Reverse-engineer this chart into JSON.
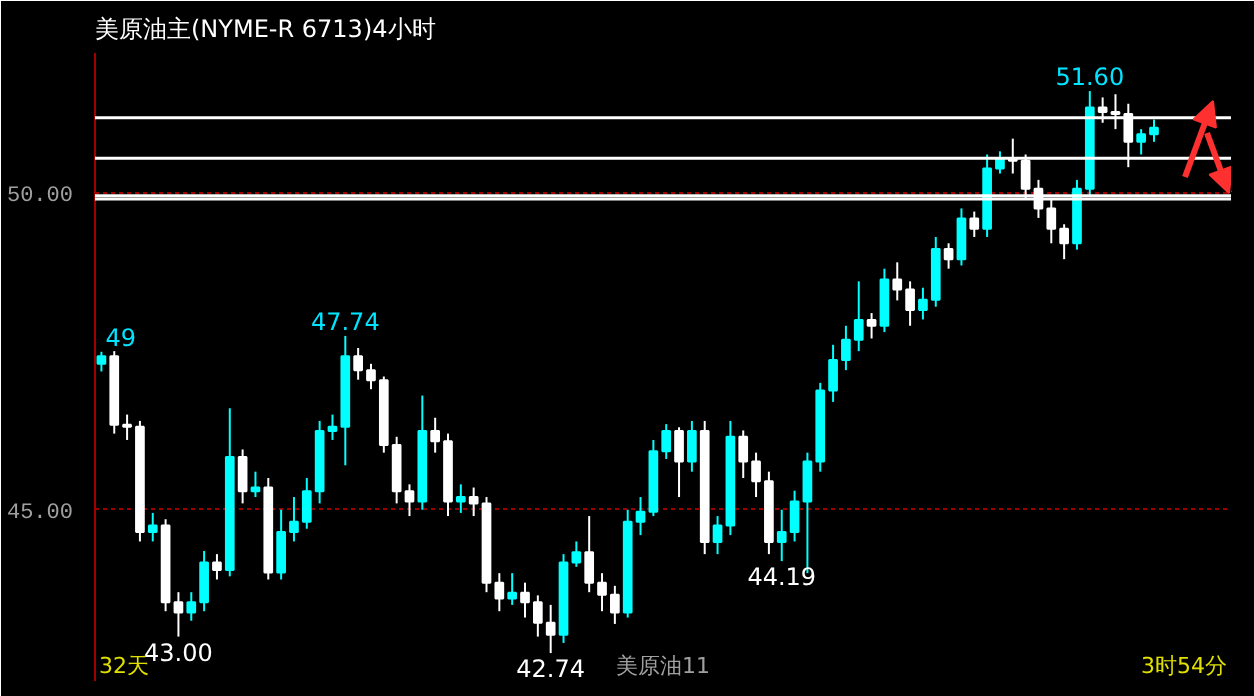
{
  "chart_data": {
    "type": "candlestick",
    "title": "美原油主(NYME-R 6713)4小时",
    "categories": [
      null,
      null,
      null,
      null,
      null,
      null,
      null,
      null,
      null,
      null,
      null,
      null,
      null,
      null,
      null,
      null,
      null,
      null,
      null,
      null,
      null,
      null,
      null,
      null,
      null,
      null,
      null,
      null,
      null,
      null,
      null,
      null,
      null,
      null,
      null,
      null,
      null,
      null,
      null,
      null,
      null,
      null,
      null,
      null,
      null,
      null,
      null,
      null,
      null,
      null,
      null,
      null,
      null,
      null,
      null,
      null,
      null,
      null,
      null,
      null,
      null,
      null,
      null,
      null,
      null,
      null,
      null,
      null,
      null,
      null,
      null,
      null,
      null,
      null,
      null,
      null,
      null,
      null,
      null,
      null,
      null,
      null,
      null
    ],
    "ohlc": [
      [
        47.3,
        47.49,
        47.18,
        47.42
      ],
      [
        47.42,
        47.5,
        46.2,
        46.34
      ],
      [
        46.34,
        46.5,
        46.1,
        46.31
      ],
      [
        46.31,
        46.4,
        44.5,
        44.65
      ],
      [
        44.65,
        44.95,
        44.5,
        44.75
      ],
      [
        44.75,
        44.85,
        43.4,
        43.54
      ],
      [
        43.54,
        43.7,
        43.0,
        43.38
      ],
      [
        43.38,
        43.7,
        43.25,
        43.54
      ],
      [
        43.54,
        44.35,
        43.4,
        44.17
      ],
      [
        44.17,
        44.3,
        43.9,
        44.05
      ],
      [
        44.05,
        46.6,
        43.95,
        45.83
      ],
      [
        45.83,
        45.95,
        45.1,
        45.29
      ],
      [
        45.29,
        45.6,
        45.2,
        45.35
      ],
      [
        45.35,
        45.5,
        43.9,
        44.01
      ],
      [
        44.01,
        45.0,
        43.9,
        44.65
      ],
      [
        44.65,
        45.2,
        44.5,
        44.81
      ],
      [
        44.81,
        45.5,
        44.7,
        45.29
      ],
      [
        45.29,
        46.4,
        45.1,
        46.24
      ],
      [
        46.24,
        46.5,
        46.1,
        46.31
      ],
      [
        46.31,
        47.74,
        45.7,
        47.42
      ],
      [
        47.42,
        47.55,
        47.05,
        47.2
      ],
      [
        47.2,
        47.3,
        46.9,
        47.04
      ],
      [
        47.04,
        47.1,
        45.9,
        46.02
      ],
      [
        46.02,
        46.15,
        45.1,
        45.29
      ],
      [
        45.29,
        45.4,
        44.9,
        45.13
      ],
      [
        45.13,
        46.8,
        45.0,
        46.24
      ],
      [
        46.24,
        46.45,
        45.9,
        46.08
      ],
      [
        46.08,
        46.2,
        44.9,
        45.13
      ],
      [
        45.13,
        45.4,
        44.95,
        45.2
      ],
      [
        45.2,
        45.35,
        44.9,
        45.1
      ],
      [
        45.1,
        45.2,
        43.7,
        43.85
      ],
      [
        43.85,
        44.0,
        43.4,
        43.6
      ],
      [
        43.6,
        44.0,
        43.5,
        43.69
      ],
      [
        43.69,
        43.85,
        43.3,
        43.54
      ],
      [
        43.54,
        43.65,
        43.0,
        43.22
      ],
      [
        43.22,
        43.5,
        42.74,
        43.03
      ],
      [
        43.03,
        44.3,
        42.9,
        44.17
      ],
      [
        44.17,
        44.5,
        44.1,
        44.33
      ],
      [
        44.33,
        44.9,
        43.7,
        43.85
      ],
      [
        43.85,
        44.0,
        43.4,
        43.66
      ],
      [
        43.66,
        43.8,
        43.2,
        43.38
      ],
      [
        43.38,
        45.0,
        43.3,
        44.81
      ],
      [
        44.81,
        45.2,
        44.6,
        44.97
      ],
      [
        44.97,
        46.1,
        44.9,
        45.92
      ],
      [
        45.92,
        46.35,
        45.8,
        46.24
      ],
      [
        46.24,
        46.3,
        45.2,
        45.76
      ],
      [
        45.76,
        46.4,
        45.6,
        46.24
      ],
      [
        46.24,
        46.4,
        44.3,
        44.49
      ],
      [
        44.49,
        44.9,
        44.3,
        44.75
      ],
      [
        44.75,
        46.4,
        44.6,
        46.15
      ],
      [
        46.15,
        46.25,
        45.5,
        45.76
      ],
      [
        45.76,
        45.9,
        45.2,
        45.45
      ],
      [
        45.45,
        45.6,
        44.3,
        44.49
      ],
      [
        44.49,
        45.0,
        44.19,
        44.65
      ],
      [
        44.65,
        45.3,
        44.5,
        45.13
      ],
      [
        45.13,
        45.9,
        44.0,
        45.76
      ],
      [
        45.76,
        47.0,
        45.6,
        46.88
      ],
      [
        46.88,
        47.6,
        46.7,
        47.36
      ],
      [
        47.36,
        47.9,
        47.2,
        47.68
      ],
      [
        47.68,
        48.6,
        47.5,
        47.99
      ],
      [
        47.99,
        48.1,
        47.7,
        47.9
      ],
      [
        47.9,
        48.8,
        47.8,
        48.63
      ],
      [
        48.63,
        48.9,
        48.3,
        48.47
      ],
      [
        48.47,
        48.6,
        47.9,
        48.15
      ],
      [
        48.15,
        48.5,
        48.0,
        48.31
      ],
      [
        48.31,
        49.3,
        48.2,
        49.11
      ],
      [
        49.11,
        49.2,
        48.8,
        48.95
      ],
      [
        48.95,
        49.75,
        48.85,
        49.59
      ],
      [
        49.59,
        49.7,
        49.3,
        49.43
      ],
      [
        49.43,
        50.6,
        49.3,
        50.38
      ],
      [
        50.38,
        50.65,
        50.3,
        50.54
      ],
      [
        50.54,
        50.85,
        50.3,
        50.5
      ],
      [
        50.5,
        50.6,
        49.9,
        50.06
      ],
      [
        50.06,
        50.2,
        49.6,
        49.75
      ],
      [
        49.75,
        49.9,
        49.2,
        49.43
      ],
      [
        49.43,
        49.5,
        48.95,
        49.2
      ],
      [
        49.2,
        50.2,
        49.1,
        50.06
      ],
      [
        50.06,
        51.6,
        49.95,
        51.34
      ],
      [
        51.34,
        51.5,
        51.1,
        51.27
      ],
      [
        51.27,
        51.55,
        51.0,
        51.24
      ],
      [
        51.24,
        51.4,
        50.4,
        50.8
      ],
      [
        50.8,
        51.0,
        50.6,
        50.92
      ],
      [
        50.92,
        51.15,
        50.8,
        51.02
      ]
    ],
    "colors": [
      "#00ffff",
      "#ffffff",
      "#ffffff",
      "#ffffff",
      "#00ffff",
      "#ffffff",
      "#ffffff",
      "#00ffff",
      "#00ffff",
      "#ffffff",
      "#00ffff",
      "#ffffff",
      "#00ffff",
      "#ffffff",
      "#00ffff",
      "#00ffff",
      "#00ffff",
      "#00ffff",
      "#00ffff",
      "#00ffff",
      "#ffffff",
      "#ffffff",
      "#ffffff",
      "#ffffff",
      "#ffffff",
      "#00ffff",
      "#ffffff",
      "#ffffff",
      "#00ffff",
      "#ffffff",
      "#ffffff",
      "#ffffff",
      "#00ffff",
      "#ffffff",
      "#ffffff",
      "#ffffff",
      "#00ffff",
      "#00ffff",
      "#ffffff",
      "#ffffff",
      "#ffffff",
      "#00ffff",
      "#00ffff",
      "#00ffff",
      "#00ffff",
      "#ffffff",
      "#00ffff",
      "#ffffff",
      "#00ffff",
      "#00ffff",
      "#ffffff",
      "#ffffff",
      "#ffffff",
      "#00ffff",
      "#00ffff",
      "#00ffff",
      "#00ffff",
      "#00ffff",
      "#00ffff",
      "#00ffff",
      "#ffffff",
      "#00ffff",
      "#ffffff",
      "#ffffff",
      "#00ffff",
      "#00ffff",
      "#ffffff",
      "#00ffff",
      "#ffffff",
      "#00ffff",
      "#00ffff",
      "#ffffff",
      "#ffffff",
      "#ffffff",
      "#ffffff",
      "#ffffff",
      "#00ffff",
      "#00ffff",
      "#ffffff",
      "#ffffff",
      "#ffffff",
      "#00ffff",
      "#00ffff"
    ],
    "ylim": [
      42.3,
      52.2
    ],
    "yticks": [
      {
        "value": 45,
        "label": "45.00"
      },
      {
        "value": 50,
        "label": "50.00"
      }
    ],
    "tick_labels": "y",
    "grid": "y",
    "ref_lines": [
      {
        "axis": "y",
        "value": 51.18,
        "color": "#ffffff"
      },
      {
        "axis": "y",
        "value": 50.54,
        "color": "#ffffff"
      },
      {
        "axis": "y",
        "value": 49.95,
        "color": "#ffffff"
      },
      {
        "axis": "y",
        "value": 49.9,
        "color": "#ffffff"
      }
    ],
    "annotations": [
      {
        "text": "49",
        "y": 47.49
      },
      {
        "text": "47.74",
        "y": 47.74
      },
      {
        "text": "43.00",
        "y": 43.0
      },
      {
        "text": "42.74",
        "y": 42.74
      },
      {
        "text": "44.19",
        "y": 44.19
      },
      {
        "text": "51.60",
        "y": 51.6
      },
      "32天",
      "美原油11",
      "3时54分"
    ]
  }
}
